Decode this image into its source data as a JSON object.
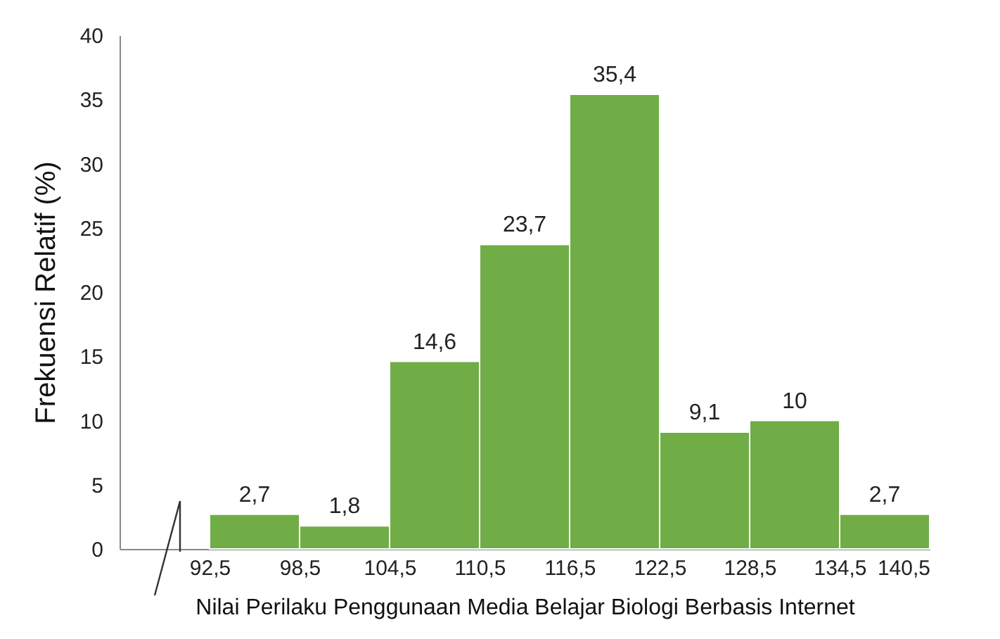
{
  "chart_data": {
    "type": "histogram",
    "ylabel": "Frekuensi  Relatif (%)",
    "xlabel": "Nilai Perilaku Penggunaan Media Belajar Biologi Berbasis Internet",
    "bins": [
      92.5,
      98.5,
      104.5,
      110.5,
      116.5,
      122.5,
      128.5,
      134.5,
      140.5
    ],
    "values": [
      2.7,
      1.8,
      14.6,
      23.7,
      35.4,
      9.1,
      10,
      2.7
    ],
    "value_labels": [
      "2,7",
      "1,8",
      "14,6",
      "23,7",
      "35,4",
      "9,1",
      "10",
      "2,7"
    ],
    "color": "#70ad47",
    "xlim": [
      86.5,
      140.5
    ],
    "xticks": [
      {
        "value": 92.5,
        "label": "92,5"
      },
      {
        "value": 98.5,
        "label": "98,5"
      },
      {
        "value": 104.5,
        "label": "104,5"
      },
      {
        "value": 110.5,
        "label": "110,5"
      },
      {
        "value": 116.5,
        "label": "116,5"
      },
      {
        "value": 122.5,
        "label": "122,5"
      },
      {
        "value": 128.5,
        "label": "128,5"
      },
      {
        "value": 134.5,
        "label": "134,5"
      },
      {
        "value": 140.5,
        "label": "140,5"
      }
    ],
    "ylim": [
      0,
      40
    ],
    "yticks": [
      0,
      5,
      10,
      15,
      20,
      25,
      30,
      35,
      40
    ],
    "grid": false
  }
}
